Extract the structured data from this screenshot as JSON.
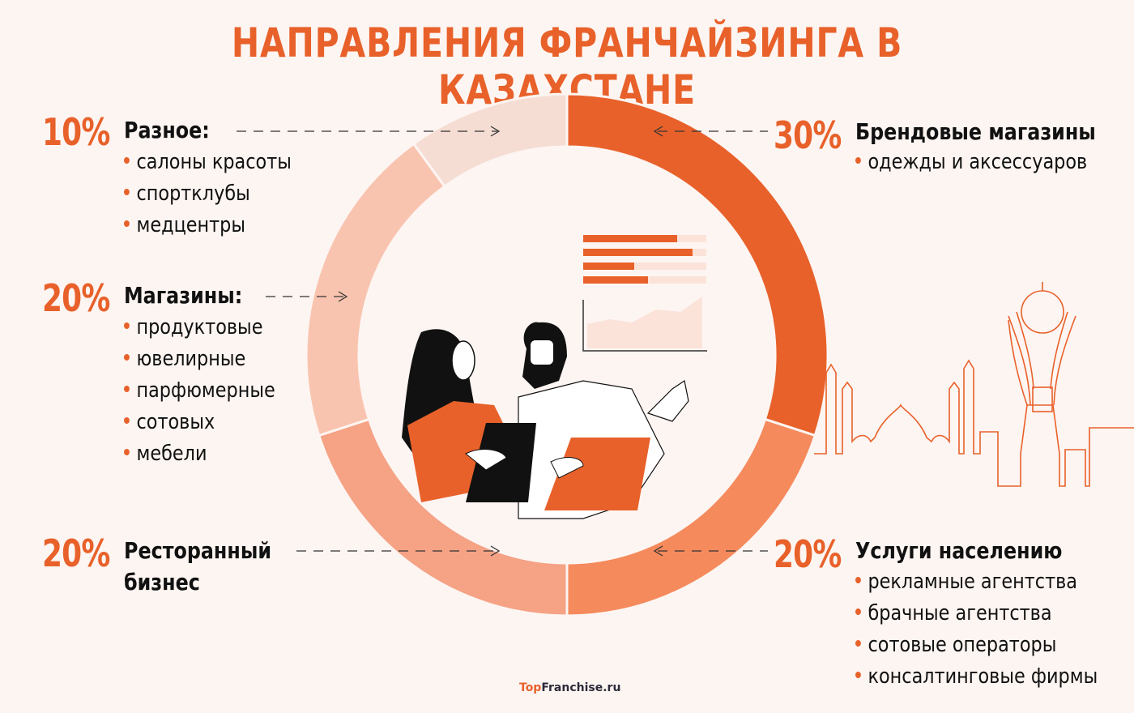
{
  "title": "НАПРАВЛЕНИЯ ФРАНЧАЙЗИНГА В КАЗАХСТАНЕ",
  "colors": {
    "background": "#FDF5F2",
    "accent": "#E8612A",
    "text": "#111111",
    "segments": [
      "#E8612A",
      "#F58A5C",
      "#F5A285",
      "#F9C4AF",
      "#F6DDD4"
    ]
  },
  "categories": [
    {
      "pct": "10%",
      "heading": "Разное:",
      "items": [
        "салоны красоты",
        "спортклубы",
        "медцентры"
      ]
    },
    {
      "pct": "20%",
      "heading": "Магазины:",
      "items": [
        "продуктовые",
        "ювелирные",
        "парфюмерные",
        "сотовых",
        "мебели"
      ]
    },
    {
      "pct": "20%",
      "heading": "Ресторанный",
      "heading2": "бизнес",
      "items": []
    },
    {
      "pct": "30%",
      "heading": "Брендовые магазины",
      "items": [
        "одежды и аксессуаров"
      ]
    },
    {
      "pct": "20%",
      "heading": "Услуги населению",
      "items": [
        "рекламные агентства",
        "брачные агентства",
        "сотовые операторы",
        "консалтинговые фирмы"
      ]
    }
  ],
  "logo": {
    "part1": "Top",
    "part2": "Franchise.ru"
  },
  "chart_data": {
    "type": "pie",
    "title": "НАПРАВЛЕНИЯ ФРАНЧАЙЗИНГА В КАЗАХСТАНЕ",
    "donut": true,
    "categories": [
      "Брендовые магазины",
      "Услуги населению",
      "Ресторанный бизнес",
      "Магазины",
      "Разное"
    ],
    "values": [
      30,
      20,
      20,
      20,
      10
    ],
    "unit": "%",
    "colors": [
      "#E8612A",
      "#F58A5C",
      "#F5A285",
      "#F9C4AF",
      "#F6DDD4"
    ],
    "start_angle": "12 o'clock, clockwise",
    "subcategories": {
      "Брендовые магазины": [
        "одежды и аксессуаров"
      ],
      "Услуги населению": [
        "рекламные агентства",
        "брачные агентства",
        "сотовые операторы",
        "консалтинговые фирмы"
      ],
      "Ресторанный бизнес": [],
      "Магазины": [
        "продуктовые",
        "ювелирные",
        "парфюмерные",
        "сотовых",
        "мебели"
      ],
      "Разное": [
        "салоны красоты",
        "спортклубы",
        "медцентры"
      ]
    }
  }
}
